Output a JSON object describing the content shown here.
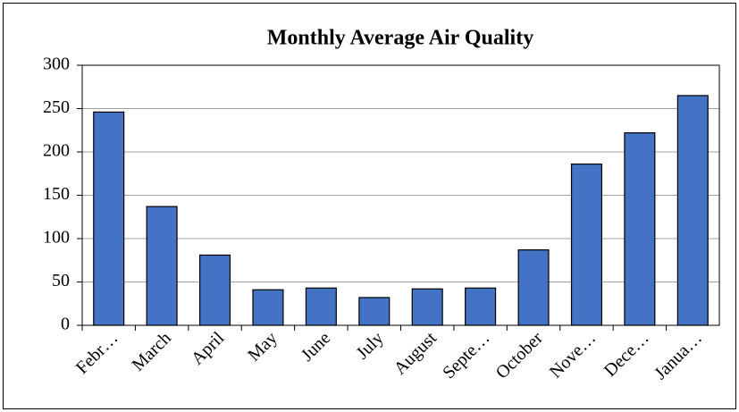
{
  "chart_data": {
    "type": "bar",
    "title": "Monthly Average Air Quality",
    "categories": [
      "Febr…",
      "March",
      "April",
      "May",
      "June",
      "July",
      "August",
      "Septe…",
      "October",
      "Nove…",
      "Dece…",
      "Janua…"
    ],
    "values": [
      246,
      137,
      81,
      41,
      43,
      32,
      42,
      43,
      87,
      186,
      222,
      265
    ],
    "color": "#4472c4",
    "ylim": [
      0,
      300
    ],
    "yticks": [
      0,
      50,
      100,
      150,
      200,
      250,
      300
    ],
    "grid": true
  }
}
